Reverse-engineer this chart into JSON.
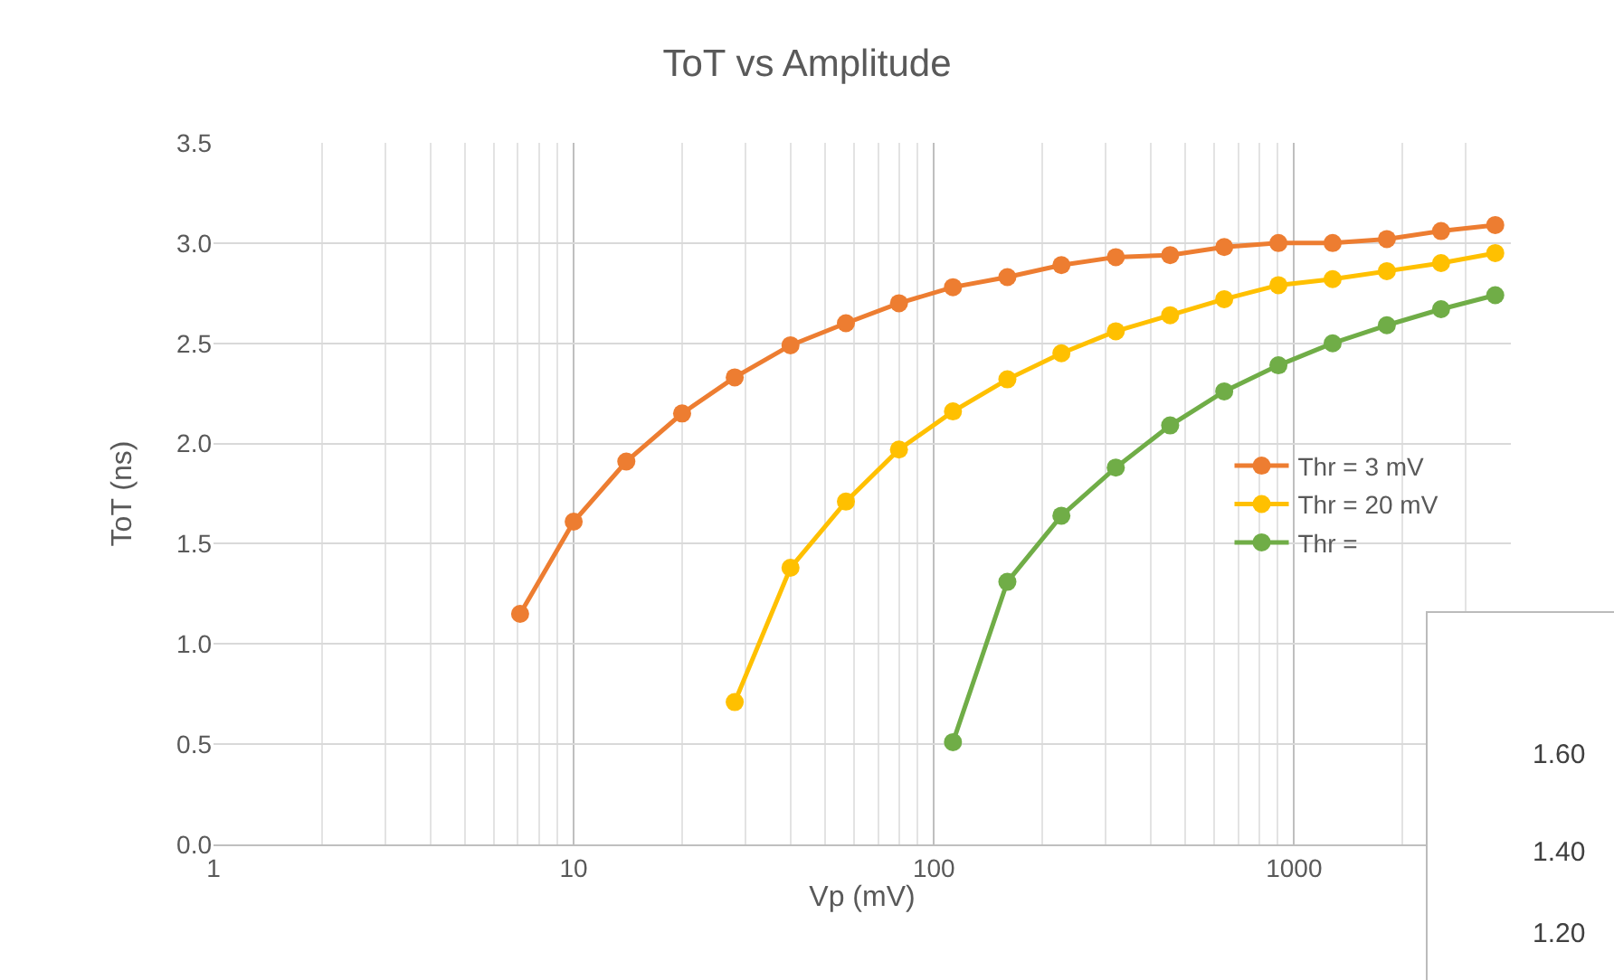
{
  "chart_data": [
    {
      "type": "line",
      "title": "ToT vs Amplitude",
      "xlabel": "Vp (mV)",
      "ylabel": "ToT (ns)",
      "log": "x",
      "grid": true,
      "legend": "right",
      "marker": "circle",
      "line_style": "solid",
      "xlim": [
        1,
        4000
      ],
      "xticks": [
        1,
        10,
        100,
        1000
      ],
      "ylim": [
        0,
        3.5
      ],
      "yticks": [
        {
          "value": 0,
          "label": "0.0"
        },
        {
          "value": 0.5,
          "label": "0.5"
        },
        {
          "value": 1,
          "label": "1.0"
        },
        {
          "value": 1.5,
          "label": "1.5"
        },
        {
          "value": 2,
          "label": "2.0"
        },
        {
          "value": 2.5,
          "label": "2.5"
        },
        {
          "value": 3,
          "label": "3.0"
        },
        {
          "value": 3.5,
          "label": "3.5"
        }
      ],
      "series": [
        {
          "name": "Thr = 3 mV",
          "color": "#ed7d31",
          "x": [
            7.1,
            10,
            14,
            20,
            28,
            40,
            57,
            80,
            113,
            160,
            226,
            320,
            453,
            640,
            905,
            1280,
            1810,
            2560,
            3620
          ],
          "values": [
            1.15,
            1.61,
            1.91,
            2.15,
            2.33,
            2.49,
            2.6,
            2.7,
            2.78,
            2.83,
            2.89,
            2.93,
            2.94,
            2.98,
            3.0,
            3.0,
            3.02,
            3.06,
            3.09
          ]
        },
        {
          "name": "Thr = 20 mV",
          "color": "#ffc000",
          "x": [
            28,
            40,
            57,
            80,
            113,
            160,
            226,
            320,
            453,
            640,
            905,
            1280,
            1810,
            2560,
            3620
          ],
          "values": [
            0.71,
            1.38,
            1.71,
            1.97,
            2.16,
            2.32,
            2.45,
            2.56,
            2.64,
            2.72,
            2.79,
            2.82,
            2.86,
            2.9,
            2.95
          ]
        },
        {
          "name": "Thr =",
          "color": "#70ad47",
          "x": [
            113,
            160,
            226,
            320,
            453,
            640,
            905,
            1280,
            1810,
            2560,
            3620
          ],
          "values": [
            0.51,
            1.31,
            1.64,
            1.88,
            2.09,
            2.26,
            2.39,
            2.5,
            2.59,
            2.67,
            2.74
          ]
        }
      ]
    },
    {
      "type": "other",
      "annotations": [
        "1.60",
        "1.40",
        "1.20"
      ]
    }
  ]
}
